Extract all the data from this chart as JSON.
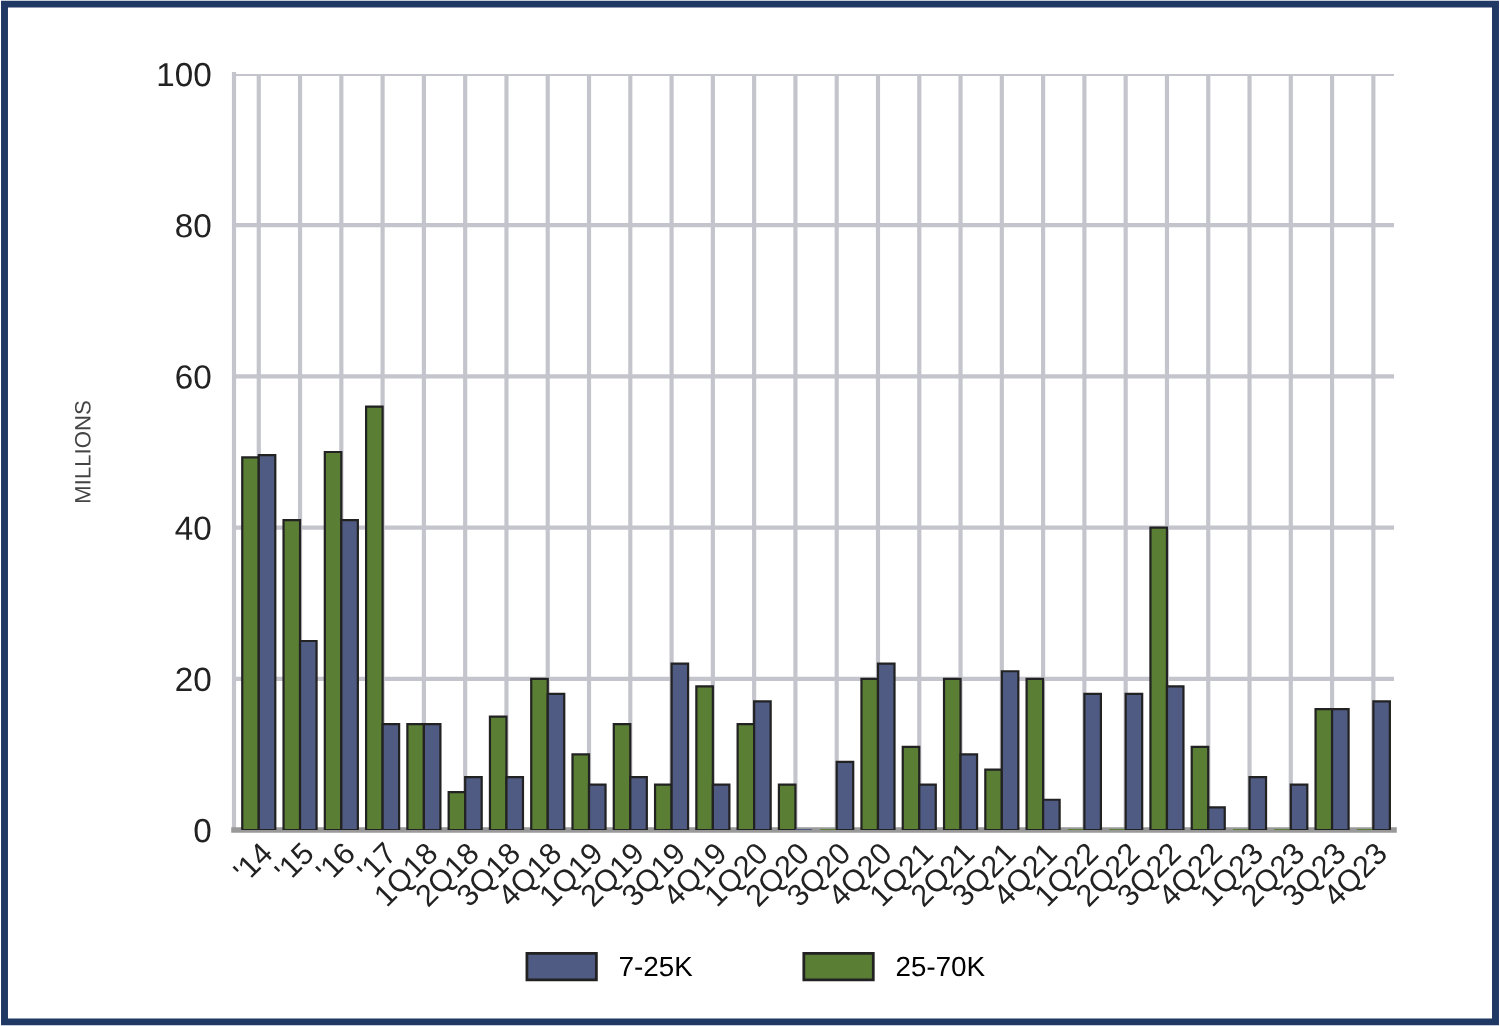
{
  "chart_data": {
    "type": "bar",
    "ylabel": "MILLIONS",
    "categories": [
      "'14",
      "'15",
      "'16",
      "'17",
      "1Q18",
      "2Q18",
      "3Q18",
      "4Q18",
      "1Q19",
      "2Q19",
      "3Q19",
      "4Q19",
      "1Q20",
      "2Q20",
      "3Q20",
      "4Q20",
      "1Q21",
      "2Q21",
      "3Q21",
      "4Q21",
      "1Q22",
      "2Q22",
      "3Q22",
      "4Q22",
      "1Q23",
      "2Q23",
      "3Q23",
      "4Q23"
    ],
    "series": [
      {
        "name": "25-70K",
        "color": "#5a7f34",
        "values": [
          49.3,
          41,
          50,
          56,
          14,
          5,
          15,
          20,
          10,
          14,
          6,
          19,
          14,
          6,
          0,
          20,
          11,
          20,
          8,
          20,
          0,
          0,
          40,
          11,
          0,
          0,
          16,
          0
        ]
      },
      {
        "name": "7-25K",
        "color": "#4f5b82",
        "values": [
          49.6,
          25,
          41,
          14,
          14,
          7,
          7,
          18,
          6,
          7,
          22,
          6,
          17,
          0,
          9,
          22,
          6,
          10,
          21,
          4,
          18,
          18,
          19,
          3,
          7,
          6,
          16,
          17
        ]
      }
    ],
    "ylim": [
      0,
      100
    ],
    "yticks": [
      0,
      20,
      40,
      60,
      80,
      100
    ],
    "grid": true,
    "legend": "bottom"
  }
}
